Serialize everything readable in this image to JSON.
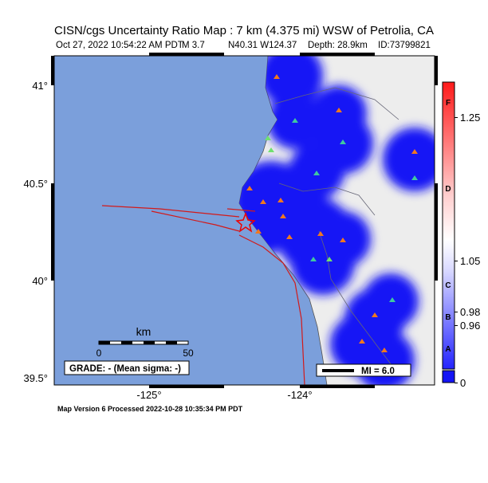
{
  "header": {
    "title": "CISN/cgs Uncertainty Ratio Map : 7 km (4.375 mi) WSW of Petrolia, CA",
    "date": "Oct 27, 2022 10:54:22 AM PDT",
    "magnitude": "M 3.7",
    "location": "N40.31 W124.37",
    "depth": "Depth: 28.9km",
    "id": "ID:73799821"
  },
  "map": {
    "lat_labels": [
      "41°",
      "40.5°",
      "40°",
      "39.5°"
    ],
    "lon_labels": [
      "-125°",
      "-124°"
    ],
    "scale": {
      "unit": "km",
      "start": "0",
      "end": "50"
    },
    "grade_box": "GRADE: - (Mean sigma: -)",
    "mi_box": "MI = 6.0"
  },
  "colorbar": {
    "letters": [
      "F",
      "D",
      "C",
      "B",
      "A"
    ],
    "ticks": [
      "1.25",
      "1.05",
      "0.98",
      "0.96",
      "0"
    ]
  },
  "footer": "Map Version 6 Processed 2022-10-28 10:35:34 PM PDT"
}
